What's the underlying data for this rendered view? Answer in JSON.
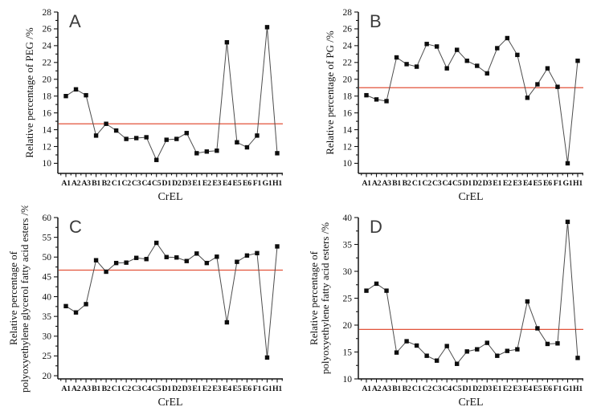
{
  "figure": {
    "background": "#ffffff",
    "panel_letters": [
      "A",
      "B",
      "C",
      "D"
    ]
  },
  "style": {
    "axis_color": "#141414",
    "line_color": "#4d4d4d",
    "marker_color": "#0d0d0d",
    "reference_color": "#e2533a",
    "text_color": "#141414",
    "panel_letter_color": "#3c3c3c"
  },
  "chart_data": [
    {
      "type": "line",
      "panel_label": "A",
      "title": "A",
      "xlabel": "CrEL",
      "ylabel_lines": [
        "Relative percentage of PEG /%"
      ],
      "categories": [
        "A1",
        "A2",
        "A3",
        "B1",
        "B2",
        "C1",
        "C2",
        "C3",
        "C4",
        "C5",
        "D1",
        "D2",
        "D3",
        "E1",
        "E2",
        "E3",
        "E4",
        "E5",
        "E6",
        "F1",
        "G1",
        "H1"
      ],
      "values": [
        18.0,
        18.8,
        18.1,
        13.3,
        14.7,
        13.9,
        12.9,
        13.0,
        13.1,
        10.4,
        12.8,
        12.9,
        13.6,
        11.2,
        11.4,
        11.5,
        24.4,
        12.5,
        11.9,
        13.3,
        26.2,
        11.2
      ],
      "reference_line": 14.7,
      "ylim": [
        8.8,
        28
      ],
      "yticks": [
        10,
        12,
        14,
        16,
        18,
        20,
        22,
        24,
        26,
        28
      ],
      "grid": false,
      "legend": false
    },
    {
      "type": "line",
      "panel_label": "B",
      "title": "B",
      "xlabel": "CrEL",
      "ylabel_lines": [
        "Relative percentage of PG /%"
      ],
      "categories": [
        "A1",
        "A2",
        "A3",
        "B1",
        "B2",
        "C1",
        "C2",
        "C3",
        "C4",
        "C5",
        "D1",
        "D2",
        "D3",
        "E1",
        "E2",
        "E3",
        "E4",
        "E5",
        "E6",
        "F1",
        "G1",
        "H1"
      ],
      "values": [
        18.1,
        17.6,
        17.4,
        22.6,
        21.8,
        21.5,
        24.2,
        23.9,
        21.3,
        23.5,
        22.2,
        21.6,
        20.7,
        23.7,
        24.9,
        22.9,
        17.8,
        19.4,
        21.3,
        19.1,
        10.0,
        22.2
      ],
      "reference_line": 19.0,
      "ylim": [
        8.8,
        28
      ],
      "yticks": [
        10,
        12,
        14,
        16,
        18,
        20,
        22,
        24,
        26,
        28
      ],
      "grid": false,
      "legend": false
    },
    {
      "type": "line",
      "panel_label": "C",
      "title": "C",
      "xlabel": "CrEL",
      "ylabel_lines": [
        "Relative percentage of",
        "polyoxyethylene glycerol fatty acid esters /%"
      ],
      "categories": [
        "A1",
        "A2",
        "A3",
        "B1",
        "B2",
        "C1",
        "C2",
        "C3",
        "C4",
        "C5",
        "D1",
        "D2",
        "D3",
        "E1",
        "E2",
        "E3",
        "E4",
        "E5",
        "E6",
        "F1",
        "G1",
        "H1"
      ],
      "values": [
        37.6,
        36.0,
        38.1,
        49.2,
        46.3,
        48.5,
        48.6,
        49.8,
        49.5,
        53.6,
        50.0,
        49.9,
        49.0,
        50.9,
        48.5,
        50.1,
        33.5,
        48.8,
        50.4,
        51.0,
        24.6,
        52.7
      ],
      "reference_line": 46.7,
      "ylim": [
        19.2,
        60
      ],
      "yticks": [
        20,
        25,
        30,
        35,
        40,
        45,
        50,
        55,
        60
      ],
      "grid": false,
      "legend": false
    },
    {
      "type": "line",
      "panel_label": "D",
      "title": "D",
      "xlabel": "CrEL",
      "ylabel_lines": [
        "Relative percentage of",
        "polyoxyethylene fatty acid esters /%"
      ],
      "categories": [
        "A1",
        "A2",
        "A3",
        "B1",
        "B2",
        "C1",
        "C2",
        "C3",
        "C4",
        "C5",
        "D1",
        "D2",
        "D3",
        "E1",
        "E2",
        "E3",
        "E4",
        "E5",
        "E6",
        "F1",
        "G1",
        "H1"
      ],
      "values": [
        26.4,
        27.7,
        26.4,
        14.9,
        17.0,
        16.2,
        14.3,
        13.4,
        16.1,
        12.8,
        15.1,
        15.5,
        16.7,
        14.3,
        15.2,
        15.5,
        24.4,
        19.4,
        16.5,
        16.6,
        39.2,
        13.9
      ],
      "reference_line": 19.2,
      "ylim": [
        10,
        40
      ],
      "yticks": [
        10,
        15,
        20,
        25,
        30,
        35,
        40
      ],
      "grid": false,
      "legend": false
    }
  ]
}
